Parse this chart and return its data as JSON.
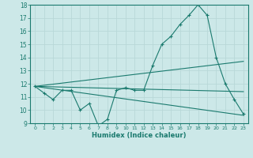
{
  "xlabel": "Humidex (Indice chaleur)",
  "bg_color": "#cce8e8",
  "grid_color": "#b8d8d8",
  "line_color": "#1a7a6e",
  "xlim": [
    -0.5,
    23.5
  ],
  "ylim": [
    9,
    18
  ],
  "xticks": [
    0,
    1,
    2,
    3,
    4,
    5,
    6,
    7,
    8,
    9,
    10,
    11,
    12,
    13,
    14,
    15,
    16,
    17,
    18,
    19,
    20,
    21,
    22,
    23
  ],
  "yticks": [
    9,
    10,
    11,
    12,
    13,
    14,
    15,
    16,
    17,
    18
  ],
  "line1_x": [
    0,
    1,
    2,
    3,
    4,
    5,
    6,
    7,
    8,
    9,
    10,
    11,
    12,
    13,
    14,
    15,
    16,
    17,
    18,
    19,
    20,
    21,
    22,
    23
  ],
  "line1_y": [
    11.8,
    11.3,
    10.8,
    11.5,
    11.5,
    10.0,
    10.5,
    8.8,
    9.3,
    11.5,
    11.7,
    11.5,
    11.5,
    13.4,
    15.0,
    15.6,
    16.5,
    17.2,
    18.0,
    17.2,
    14.0,
    12.0,
    10.8,
    9.7
  ],
  "line2_x": [
    0,
    23
  ],
  "line2_y": [
    11.8,
    13.7
  ],
  "line3_x": [
    0,
    23
  ],
  "line3_y": [
    11.8,
    11.4
  ],
  "line4_x": [
    0,
    23
  ],
  "line4_y": [
    11.8,
    9.6
  ]
}
